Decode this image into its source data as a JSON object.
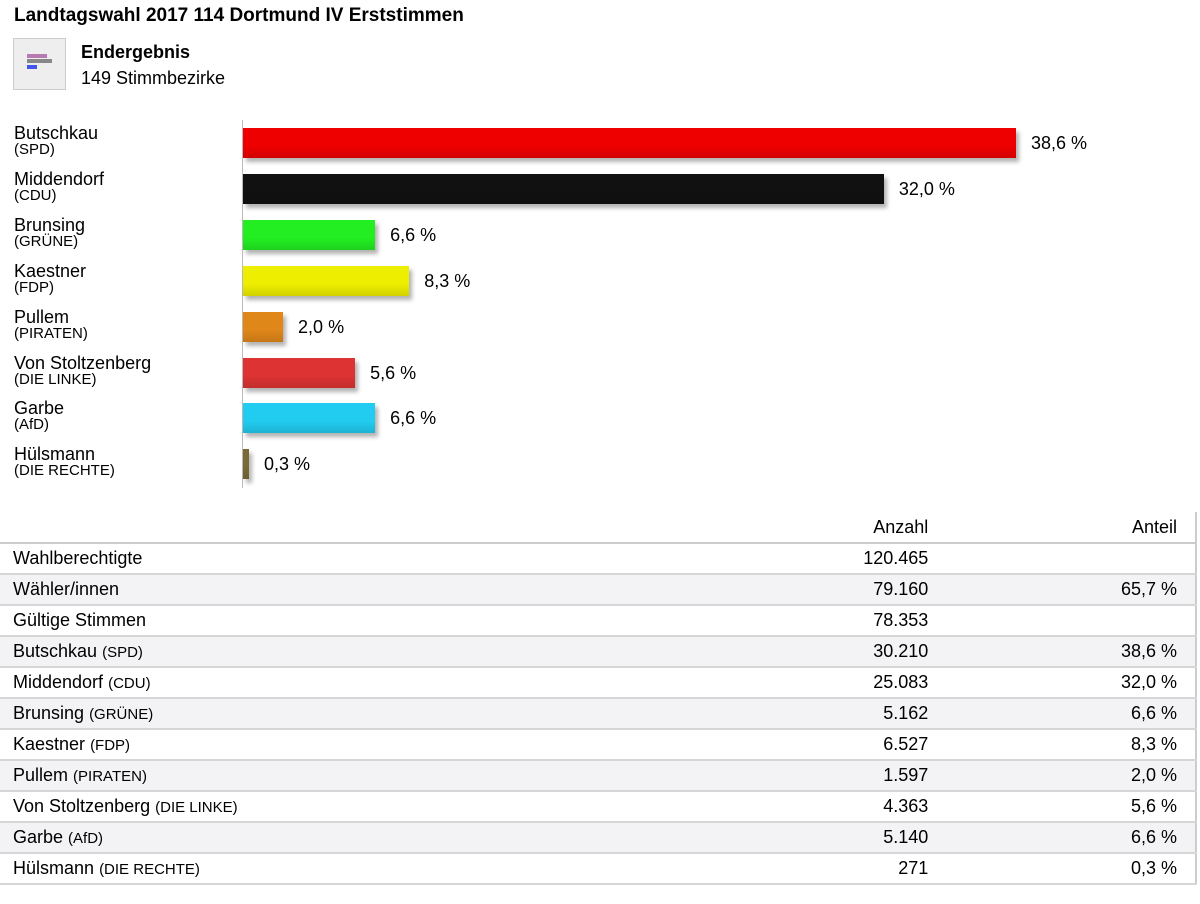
{
  "header": {
    "title": "Landtagswahl 2017 114 Dortmund IV Erststimmen",
    "status": "Endergebnis",
    "districts": "149 Stimmbezirke",
    "icon": "bar-chart-icon"
  },
  "chart_data": {
    "type": "bar",
    "orientation": "horizontal",
    "unit": "%",
    "xlim": [
      0,
      38.6
    ],
    "categories": [
      "Butschkau",
      "Middendorf",
      "Brunsing",
      "Kaestner",
      "Pullem",
      "Von Stoltzenberg",
      "Garbe",
      "Hülsmann"
    ],
    "parties": [
      "(SPD)",
      "(CDU)",
      "(GRÜNE)",
      "(FDP)",
      "(PIRATEN)",
      "(DIE LINKE)",
      "(AfD)",
      "(DIE RECHTE)"
    ],
    "values": [
      38.6,
      32.0,
      6.6,
      8.3,
      2.0,
      5.6,
      6.6,
      0.3
    ],
    "labels": [
      "38,6 %",
      "32,0 %",
      "6,6 %",
      "8,3 %",
      "2,0 %",
      "5,6 %",
      "6,6 %",
      "0,3 %"
    ],
    "colors": [
      "#ee0000",
      "#111111",
      "#22ee22",
      "#eeee00",
      "#e0871a",
      "#dd3333",
      "#22ccf0",
      "#7a6a35"
    ]
  },
  "table": {
    "headers": [
      "",
      "Anzahl",
      "Anteil"
    ],
    "rows": [
      {
        "name": "Wahlberechtigte",
        "party": "",
        "count": "120.465",
        "share": ""
      },
      {
        "name": "Wähler/innen",
        "party": "",
        "count": "79.160",
        "share": "65,7 %"
      },
      {
        "name": "Gültige Stimmen",
        "party": "",
        "count": "78.353",
        "share": ""
      },
      {
        "name": "Butschkau",
        "party": "(SPD)",
        "count": "30.210",
        "share": "38,6 %"
      },
      {
        "name": "Middendorf",
        "party": "(CDU)",
        "count": "25.083",
        "share": "32,0 %"
      },
      {
        "name": "Brunsing",
        "party": "(GRÜNE)",
        "count": "5.162",
        "share": "6,6 %"
      },
      {
        "name": "Kaestner",
        "party": "(FDP)",
        "count": "6.527",
        "share": "8,3 %"
      },
      {
        "name": "Pullem",
        "party": "(PIRATEN)",
        "count": "1.597",
        "share": "2,0 %"
      },
      {
        "name": "Von Stoltzenberg",
        "party": "(DIE LINKE)",
        "count": "4.363",
        "share": "5,6 %"
      },
      {
        "name": "Garbe",
        "party": "(AfD)",
        "count": "5.140",
        "share": "6,6 %"
      },
      {
        "name": "Hülsmann",
        "party": "(DIE RECHTE)",
        "count": "271",
        "share": "0,3 %"
      }
    ]
  }
}
